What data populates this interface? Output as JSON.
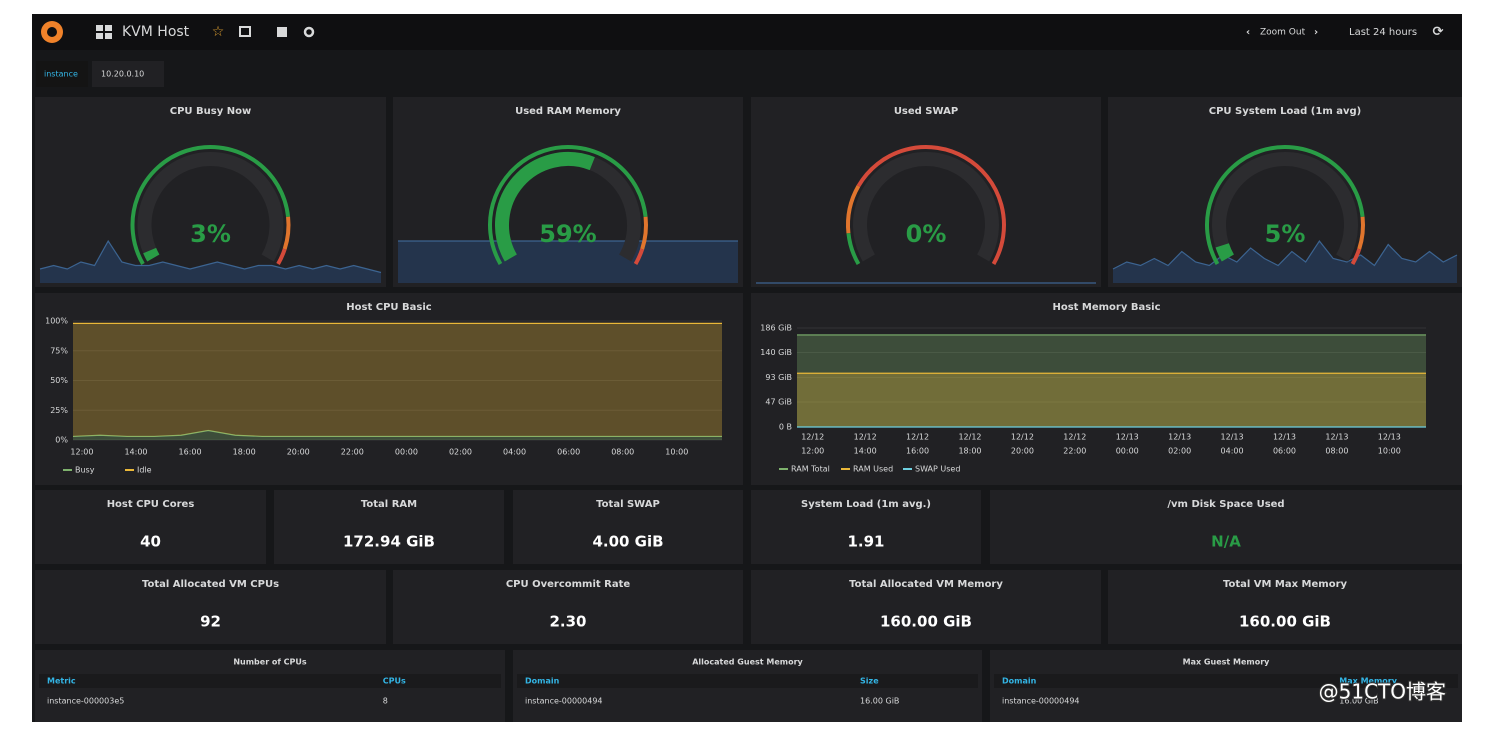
{
  "header": {
    "dashboard": "KVM Host",
    "zoom": "Zoom Out",
    "time_range": "Last 24 hours"
  },
  "variables": [
    {
      "name": "instance",
      "value": "10.20.0.10"
    }
  ],
  "threshold_colors": [
    "#299c46",
    "#e0752d",
    "#d44a3a"
  ],
  "gauges": [
    {
      "title": "CPU Busy Now",
      "value": 3,
      "value_label": "3%",
      "range": [
        0,
        100
      ],
      "thresholds": [
        85,
        95
      ],
      "sparkline": [
        4,
        5,
        4,
        6,
        5,
        12,
        6,
        5,
        5,
        6,
        5,
        4,
        5,
        6,
        5,
        4,
        5,
        5,
        4,
        5,
        4,
        5,
        4,
        5,
        4,
        3
      ]
    },
    {
      "title": "Used RAM Memory",
      "value": 59,
      "value_label": "59%",
      "range": [
        0,
        100
      ],
      "thresholds": [
        85,
        95
      ],
      "sparkline": [
        59,
        59,
        59,
        59,
        59,
        59
      ]
    },
    {
      "title": "Used SWAP",
      "value": 0,
      "value_label": "0%",
      "range": [
        0,
        100
      ],
      "thresholds": [
        10,
        25
      ],
      "sparkline": [
        0,
        0,
        0,
        0
      ]
    },
    {
      "title": "CPU System Load (1m avg)",
      "value": 5,
      "value_label": "5%",
      "range": [
        0,
        100
      ],
      "thresholds": [
        85,
        95
      ],
      "sparkline": [
        4,
        6,
        5,
        7,
        5,
        9,
        6,
        5,
        8,
        6,
        10,
        7,
        5,
        9,
        6,
        12,
        7,
        6,
        8,
        5,
        11,
        7,
        6,
        9,
        6,
        8
      ]
    }
  ],
  "graphs": [
    {
      "title": "Host CPU Basic",
      "stacked": true,
      "ylim": [
        0,
        100
      ],
      "yticks": [
        {
          "value": 0,
          "label": "0%"
        },
        {
          "value": 25,
          "label": "25%"
        },
        {
          "value": 50,
          "label": "50%"
        },
        {
          "value": 75,
          "label": "75%"
        },
        {
          "value": 100,
          "label": "100%"
        }
      ],
      "xticks": [
        "12:00",
        "14:00",
        "16:00",
        "18:00",
        "20:00",
        "22:00",
        "00:00",
        "02:00",
        "04:00",
        "06:00",
        "08:00",
        "10:00"
      ],
      "series": [
        {
          "name": "Busy",
          "color": "#7eb26d",
          "values": [
            3,
            4,
            3,
            3,
            4,
            8,
            4,
            3,
            3,
            3,
            3,
            3,
            3,
            3,
            3,
            3,
            3,
            3,
            3,
            3,
            3,
            3,
            3,
            3,
            3
          ]
        },
        {
          "name": "Idle",
          "color": "#eab839",
          "values": [
            95,
            94,
            95,
            95,
            94,
            90,
            94,
            95,
            95,
            95,
            95,
            95,
            95,
            95,
            95,
            95,
            95,
            95,
            95,
            95,
            95,
            95,
            95,
            95,
            95
          ]
        }
      ]
    },
    {
      "title": "Host Memory Basic",
      "stacked": false,
      "ylim": [
        0,
        186
      ],
      "yticks": [
        {
          "value": 0,
          "label": "0 B"
        },
        {
          "value": 47,
          "label": "47 GiB"
        },
        {
          "value": 93,
          "label": "93 GiB"
        },
        {
          "value": 140,
          "label": "140 GiB"
        },
        {
          "value": 186,
          "label": "186 GiB"
        }
      ],
      "xticks": [
        [
          "12/12",
          "12:00"
        ],
        [
          "12/12",
          "14:00"
        ],
        [
          "12/12",
          "16:00"
        ],
        [
          "12/12",
          "18:00"
        ],
        [
          "12/12",
          "20:00"
        ],
        [
          "12/12",
          "22:00"
        ],
        [
          "12/13",
          "00:00"
        ],
        [
          "12/13",
          "02:00"
        ],
        [
          "12/13",
          "04:00"
        ],
        [
          "12/13",
          "06:00"
        ],
        [
          "12/13",
          "08:00"
        ],
        [
          "12/13",
          "10:00"
        ]
      ],
      "series": [
        {
          "name": "RAM Total",
          "color": "#7eb26d",
          "values": [
            173,
            173,
            173,
            173,
            173,
            173,
            173,
            173,
            173,
            173,
            173,
            173,
            173
          ]
        },
        {
          "name": "RAM Used",
          "color": "#eab839",
          "values": [
            101,
            101,
            101,
            101,
            101,
            101,
            101,
            101,
            101,
            101,
            101,
            101,
            101
          ]
        },
        {
          "name": "SWAP Used",
          "color": "#6ed0e0",
          "values": [
            0,
            0,
            0,
            0,
            0,
            0,
            0,
            0,
            0,
            0,
            0,
            0,
            0
          ]
        }
      ]
    }
  ],
  "stats": [
    {
      "title": "Host CPU Cores",
      "value": "40"
    },
    {
      "title": "Total RAM",
      "value": "172.94 GiB"
    },
    {
      "title": "Total SWAP",
      "value": "4.00 GiB"
    },
    {
      "title": "System Load (1m avg.)",
      "value": "1.91"
    },
    {
      "title": "/vm Disk Space Used",
      "value": "N/A",
      "color": "#299c46"
    },
    {
      "title": "Total Allocated VM CPUs",
      "value": "92"
    },
    {
      "title": "CPU Overcommit Rate",
      "value": "2.30"
    },
    {
      "title": "Total Allocated VM Memory",
      "value": "160.00 GiB"
    },
    {
      "title": "Total VM Max Memory",
      "value": "160.00 GiB"
    }
  ],
  "tables": [
    {
      "title": "Number of CPUs",
      "columns": [
        "Metric",
        "CPUs"
      ],
      "rows": [
        [
          "instance-000003e5",
          "8"
        ]
      ]
    },
    {
      "title": "Allocated Guest Memory",
      "columns": [
        "Domain",
        "Size"
      ],
      "rows": [
        [
          "instance-00000494",
          "16.00 GiB"
        ]
      ]
    },
    {
      "title": "Max Guest Memory",
      "columns": [
        "Domain",
        "Max Memory"
      ],
      "rows": [
        [
          "instance-00000494",
          "16.00 GiB"
        ]
      ]
    }
  ],
  "watermark": "@51CTO博客"
}
